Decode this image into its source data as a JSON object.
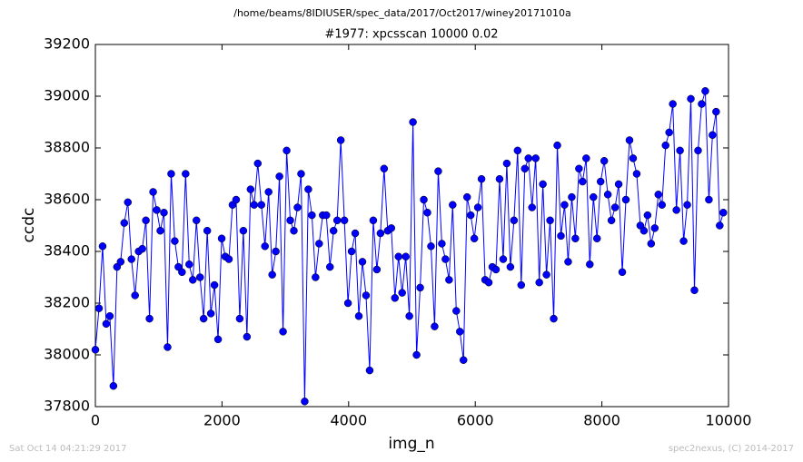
{
  "chart_data": {
    "type": "line",
    "suptitle": "/home/beams/8IDIUSER/spec_data/2017/Oct2017/winey20171010a",
    "title": "#1977: xpcsscan 10000 0.02",
    "x_label": "img_n",
    "y_label": "ccdc",
    "footer_left": "Sat Oct 14 04:21:29 2017",
    "footer_right": "spec2nexus, (C) 2014-2017",
    "xlim": [
      0,
      10000
    ],
    "xticks": [
      0,
      2000,
      4000,
      6000,
      8000,
      10000
    ],
    "ylim": [
      37800,
      39200
    ],
    "yticks": [
      37800,
      38000,
      38200,
      38400,
      38600,
      38800,
      39000,
      39200
    ],
    "grid": false,
    "x": [
      0,
      57,
      114,
      171,
      228,
      285,
      342,
      399,
      456,
      513,
      570,
      627,
      684,
      741,
      798,
      855,
      912,
      969,
      1026,
      1083,
      1140,
      1197,
      1254,
      1311,
      1368,
      1425,
      1482,
      1539,
      1596,
      1653,
      1710,
      1767,
      1824,
      1881,
      1938,
      1995,
      2052,
      2109,
      2166,
      2223,
      2280,
      2337,
      2394,
      2451,
      2508,
      2565,
      2622,
      2679,
      2736,
      2793,
      2850,
      2907,
      2964,
      3021,
      3078,
      3135,
      3192,
      3249,
      3306,
      3363,
      3420,
      3477,
      3534,
      3591,
      3648,
      3705,
      3762,
      3819,
      3876,
      3933,
      3990,
      4047,
      4104,
      4161,
      4218,
      4275,
      4332,
      4389,
      4446,
      4503,
      4560,
      4617,
      4674,
      4731,
      4788,
      4845,
      4902,
      4959,
      5016,
      5073,
      5130,
      5187,
      5244,
      5301,
      5358,
      5415,
      5472,
      5529,
      5586,
      5643,
      5700,
      5757,
      5814,
      5871,
      5928,
      5985,
      6042,
      6099,
      6156,
      6213,
      6270,
      6327,
      6384,
      6441,
      6498,
      6555,
      6612,
      6669,
      6726,
      6783,
      6840,
      6897,
      6954,
      7011,
      7068,
      7125,
      7182,
      7239,
      7296,
      7353,
      7410,
      7467,
      7524,
      7581,
      7638,
      7695,
      7752,
      7809,
      7866,
      7923,
      7980,
      8037,
      8094,
      8151,
      8208,
      8265,
      8322,
      8379,
      8436,
      8493,
      8550,
      8607,
      8664,
      8721,
      8778,
      8835,
      8892,
      8949,
      9006,
      9063,
      9120,
      9177,
      9234,
      9291,
      9348,
      9405,
      9462,
      9519,
      9576,
      9633,
      9690,
      9747,
      9804,
      9861,
      9918
    ],
    "series": [
      {
        "name": "ccdc",
        "color": "#0000ff",
        "values": [
          38020,
          38180,
          38420,
          38120,
          38150,
          37880,
          38340,
          38360,
          38510,
          38590,
          38370,
          38230,
          38400,
          38410,
          38520,
          38140,
          38630,
          38560,
          38480,
          38550,
          38030,
          38700,
          38440,
          38340,
          38320,
          38700,
          38350,
          38290,
          38520,
          38300,
          38140,
          38480,
          38160,
          38270,
          38060,
          38450,
          38380,
          38370,
          38580,
          38600,
          38140,
          38480,
          38070,
          38640,
          38580,
          38740,
          38580,
          38420,
          38630,
          38310,
          38400,
          38690,
          38090,
          38790,
          38520,
          38480,
          38570,
          38700,
          37820,
          38640,
          38540,
          38300,
          38430,
          38540,
          38540,
          38340,
          38480,
          38520,
          38830,
          38520,
          38200,
          38400,
          38470,
          38150,
          38360,
          38230,
          37940,
          38520,
          38330,
          38470,
          38720,
          38480,
          38490,
          38220,
          38380,
          38240,
          38380,
          38150,
          38900,
          38000,
          38260,
          38600,
          38550,
          38420,
          38110,
          38710,
          38430,
          38370,
          38290,
          38580,
          38170,
          38090,
          37980,
          38610,
          38540,
          38450,
          38570,
          38680,
          38290,
          38280,
          38340,
          38330,
          38680,
          38370,
          38740,
          38340,
          38520,
          38790,
          38270,
          38720,
          38760,
          38570,
          38760,
          38280,
          38660,
          38310,
          38520,
          38140,
          38810,
          38460,
          38580,
          38360,
          38610,
          38450,
          38720,
          38670,
          38760,
          38350,
          38610,
          38450,
          38670,
          38750,
          38620,
          38520,
          38570,
          38660,
          38320,
          38600,
          38830,
          38760,
          38700,
          38500,
          38480,
          38540,
          38430,
          38490,
          38620,
          38580,
          38810,
          38860,
          38970,
          38560,
          38790,
          38440,
          38580,
          38990,
          38250,
          38790,
          38970,
          39020,
          38600,
          38850,
          38940,
          38500,
          38550
        ]
      }
    ]
  }
}
